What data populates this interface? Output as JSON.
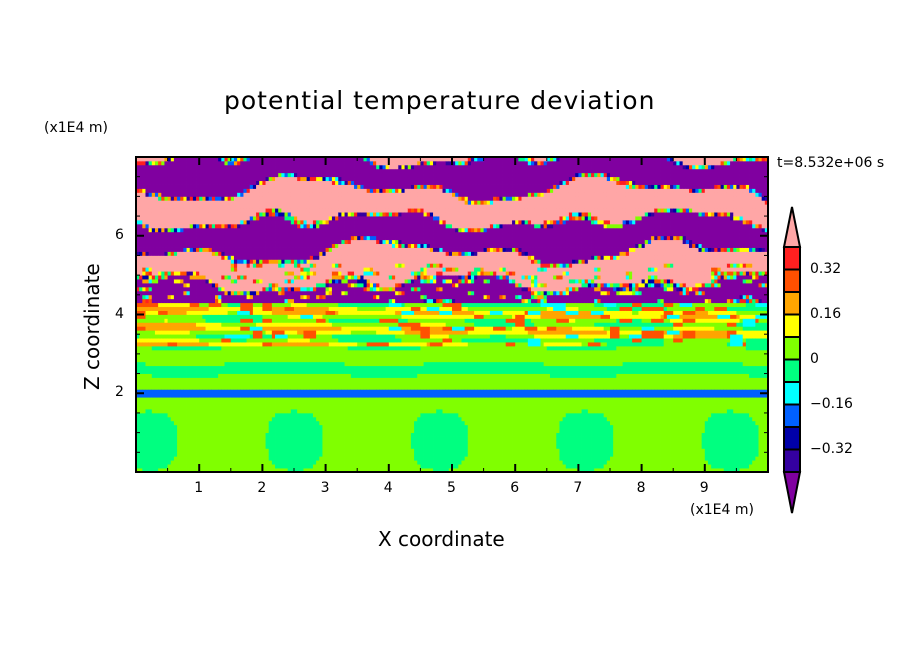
{
  "chart_data": {
    "type": "heatmap",
    "title": "potential temperature deviation",
    "xlabel": "X coordinate",
    "ylabel": "Z coordinate",
    "x_unit": "(x1E4 m)",
    "y_unit": "(x1E4 m)",
    "time_label": "t=8.532e+06 s",
    "xlim": [
      0,
      10
    ],
    "ylim": [
      0,
      8
    ],
    "xticks": [
      1,
      2,
      3,
      4,
      5,
      6,
      7,
      8,
      9
    ],
    "yticks": [
      2,
      4,
      6
    ],
    "levels": [
      -0.4,
      -0.32,
      -0.24,
      -0.16,
      -0.08,
      0,
      0.08,
      0.16,
      0.24,
      0.32,
      0.4
    ],
    "colorbar_labels": [
      "0.32",
      "0.16",
      "0",
      "-0.16",
      "-0.32"
    ],
    "colorbar_label_values": [
      0.32,
      0.16,
      0,
      -0.16,
      -0.32
    ],
    "colors": {
      "over": "#ffa6a6",
      "bands": [
        "#3400a0",
        "#0000a8",
        "#0060ff",
        "#00ffff",
        "#00ff80",
        "#80ff00",
        "#ffff00",
        "#ffa500",
        "#ff5000",
        "#ff2020"
      ],
      "under": "#8000a0"
    },
    "field_description_regions": [
      {
        "z_range": [
          4.2,
          8
        ],
        "pattern": "alternating over/under layers"
      },
      {
        "z_range": [
          3.2,
          4.2
        ],
        "pattern": "mixed 0 to 0.24"
      },
      {
        "z_range": [
          2.0,
          3.2
        ],
        "pattern": "layers around 0"
      },
      {
        "z_range": [
          0,
          2.0
        ],
        "pattern": "0 to 0.08 with cells of -0.08 to 0"
      }
    ]
  }
}
